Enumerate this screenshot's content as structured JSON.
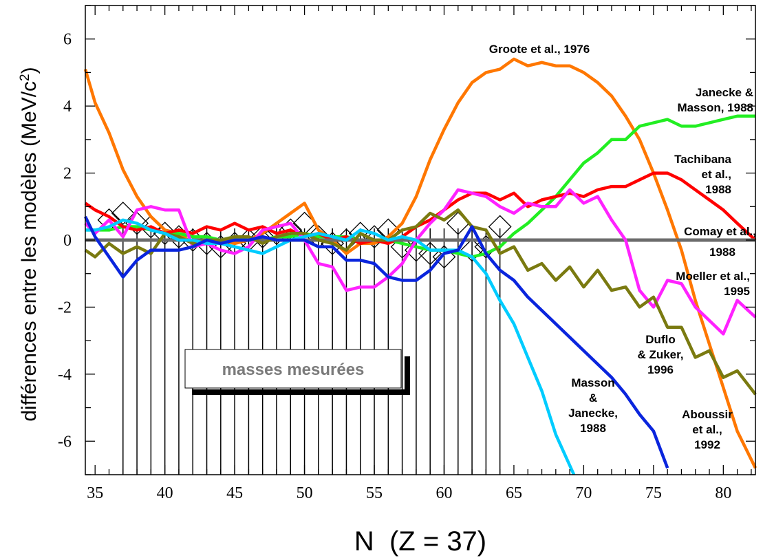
{
  "chart_data": {
    "type": "line",
    "title": "",
    "xlabel": "N  (Z = 37)",
    "ylabel": "différences entre les modèles (MeV/c²)",
    "ylabel_main": "différences entre les modèles (MeV/c",
    "ylabel_sup": "2",
    "ylabel_end": ")",
    "xlim": [
      34.3,
      82.3
    ],
    "ylim": [
      -7,
      7
    ],
    "x_ticks": [
      35,
      40,
      45,
      50,
      55,
      60,
      65,
      70,
      75,
      80
    ],
    "y_ticks": [
      6,
      4,
      2,
      0,
      -2,
      -4,
      -6
    ],
    "grid": false,
    "measured_label": "masses mesurées",
    "measured_N": [
      37,
      38,
      39,
      40,
      41,
      42,
      43,
      44,
      45,
      46,
      47,
      48,
      49,
      50,
      51,
      52,
      53,
      54,
      55,
      56,
      57,
      58,
      59,
      60,
      61,
      62,
      63,
      64
    ],
    "measured_y": [
      -7.0,
      -7.0,
      -7.0,
      -7.0,
      -7.0,
      -7.0,
      -7.0,
      -7.0,
      -7.0,
      -7.0,
      -7.0,
      -7.0,
      -7.0,
      -7.0,
      -7.0,
      -7.0,
      -7.0,
      -7.0,
      -7.0,
      -7.0,
      -7.0,
      -7.0,
      -7.0,
      -7.0,
      -7.0,
      -7.0,
      -7.0,
      -7.0
    ],
    "diamond_N": [
      36,
      37,
      38,
      39,
      40,
      41,
      42,
      43,
      44,
      45,
      46,
      47,
      48,
      49,
      50,
      51,
      52,
      53,
      54,
      55,
      56,
      57,
      58,
      59,
      60,
      61,
      62,
      63,
      64
    ],
    "diamond_y": [
      0.6,
      0.8,
      0.5,
      0.4,
      0.2,
      0.1,
      0.0,
      -0.1,
      -0.2,
      -0.1,
      0.0,
      0.1,
      0.2,
      0.3,
      0.5,
      0.1,
      -0.1,
      0.0,
      0.2,
      0.1,
      0.3,
      -0.2,
      -0.3,
      -0.4,
      -0.5,
      0.5,
      -0.3,
      -0.2,
      0.4
    ],
    "series": [
      {
        "name": "Groote et al., 1976",
        "label_lines": [
          "Groote et al., 1976"
        ],
        "color": "#ff7700",
        "x": [
          34.3,
          35,
          36,
          37,
          38,
          39,
          40,
          41,
          42,
          43,
          44,
          45,
          46,
          47,
          48,
          49,
          50,
          51,
          52,
          53,
          54,
          55,
          56,
          57,
          58,
          59,
          60,
          61,
          62,
          63,
          64,
          65,
          66,
          67,
          68,
          69,
          70,
          71,
          72,
          73,
          74,
          75,
          76,
          77,
          78,
          79,
          80,
          81,
          82.3
        ],
        "y": [
          5.1,
          4.1,
          3.2,
          2.1,
          1.3,
          0.7,
          0.3,
          0.2,
          -0.1,
          0.0,
          0.0,
          -0.1,
          0.0,
          0.2,
          0.5,
          0.8,
          1.1,
          0.3,
          0.0,
          -0.4,
          -0.1,
          -0.1,
          0.1,
          0.5,
          1.3,
          2.4,
          3.3,
          4.1,
          4.7,
          5.0,
          5.1,
          5.4,
          5.2,
          5.3,
          5.2,
          5.2,
          5.0,
          4.7,
          4.3,
          3.7,
          3.0,
          2.0,
          0.9,
          -0.3,
          -1.8,
          -3.1,
          -4.4,
          -5.7,
          -6.8
        ]
      },
      {
        "name": "Janecke & Masson, 1988",
        "label_lines": [
          "Janecke &",
          "Masson, 1988"
        ],
        "color": "#22ee22",
        "x": [
          34.3,
          35,
          36,
          37,
          38,
          39,
          40,
          41,
          42,
          43,
          44,
          45,
          46,
          47,
          48,
          49,
          50,
          51,
          52,
          53,
          54,
          55,
          56,
          57,
          58,
          59,
          60,
          61,
          62,
          63,
          64,
          65,
          66,
          67,
          68,
          69,
          70,
          71,
          72,
          73,
          74,
          75,
          76,
          77,
          78,
          79,
          80,
          81,
          82.3
        ],
        "y": [
          0.3,
          0.3,
          0.3,
          0.4,
          0.4,
          0.3,
          0.2,
          0.2,
          0.1,
          0.1,
          0.0,
          0.1,
          0.0,
          0.0,
          0.1,
          0.1,
          0.2,
          0.1,
          0.1,
          0.1,
          0.0,
          0.0,
          0.0,
          -0.1,
          -0.2,
          -0.3,
          -0.3,
          -0.4,
          -0.5,
          -0.4,
          -0.2,
          0.2,
          0.5,
          0.9,
          1.3,
          1.8,
          2.3,
          2.6,
          3.0,
          3.0,
          3.4,
          3.5,
          3.6,
          3.4,
          3.4,
          3.5,
          3.6,
          3.7,
          3.7
        ]
      },
      {
        "name": "Tachibana et al., 1988",
        "label_lines": [
          "Tachibana",
          "et al.,",
          "1988"
        ],
        "color": "#ff0000",
        "x": [
          34.3,
          35,
          36,
          37,
          38,
          39,
          40,
          41,
          42,
          43,
          44,
          45,
          46,
          47,
          48,
          49,
          50,
          51,
          52,
          53,
          54,
          55,
          56,
          57,
          58,
          59,
          60,
          61,
          62,
          63,
          64,
          65,
          66,
          67,
          68,
          69,
          70,
          71,
          72,
          73,
          74,
          75,
          76,
          77,
          78,
          79,
          80,
          81,
          82.3
        ],
        "y": [
          1.1,
          0.9,
          0.7,
          0.4,
          0.3,
          0.4,
          0.2,
          0.3,
          0.2,
          0.4,
          0.3,
          0.5,
          0.3,
          0.4,
          0.2,
          0.3,
          0.1,
          0.2,
          0.0,
          0.1,
          -0.1,
          0.0,
          -0.1,
          0.1,
          0.4,
          0.6,
          0.9,
          1.2,
          1.4,
          1.4,
          1.2,
          1.4,
          1.0,
          1.2,
          1.3,
          1.4,
          1.3,
          1.5,
          1.6,
          1.6,
          1.8,
          2.0,
          2.0,
          1.8,
          1.5,
          1.2,
          0.9,
          0.5,
          0.0
        ]
      },
      {
        "name": "Comay et al., 1988",
        "label_lines": [
          "Comay et al.,",
          "1988"
        ],
        "color": "#6b6b6b",
        "x": [
          34.3,
          82.3
        ],
        "y": [
          0.0,
          0.0
        ]
      },
      {
        "name": "Moeller et al., 1995",
        "label_lines": [
          "Moeller et al.,",
          "1995"
        ],
        "color": "#ff22ff",
        "x": [
          34.3,
          35,
          36,
          37,
          38,
          39,
          40,
          41,
          42,
          43,
          44,
          45,
          46,
          47,
          48,
          49,
          50,
          51,
          52,
          53,
          54,
          55,
          56,
          57,
          58,
          59,
          60,
          61,
          62,
          63,
          64,
          65,
          66,
          67,
          68,
          69,
          70,
          71,
          72,
          73,
          74,
          75,
          76,
          77,
          78,
          79,
          80,
          81,
          82.3
        ],
        "y": [
          0.5,
          0.2,
          0.6,
          0.1,
          0.9,
          1.0,
          0.9,
          0.9,
          -0.2,
          -0.1,
          -0.3,
          -0.4,
          -0.2,
          0.3,
          0.4,
          0.5,
          0.0,
          -0.7,
          -0.8,
          -1.5,
          -1.4,
          -1.4,
          -1.1,
          -0.7,
          0.0,
          0.5,
          0.9,
          1.5,
          1.4,
          1.3,
          1.0,
          0.8,
          1.1,
          1.0,
          1.0,
          1.5,
          1.1,
          1.3,
          0.6,
          0.0,
          -1.5,
          -2.0,
          -1.2,
          -1.3,
          -2.0,
          -2.4,
          -2.8,
          -1.8,
          -2.3
        ]
      },
      {
        "name": "Duflo & Zuker, 1996",
        "label_lines": [
          "Duflo",
          "& Zuker,",
          "1996"
        ],
        "color": "#7a7a10",
        "x": [
          34.3,
          35,
          36,
          37,
          38,
          39,
          40,
          41,
          42,
          43,
          44,
          45,
          46,
          47,
          48,
          49,
          50,
          51,
          52,
          53,
          54,
          55,
          56,
          57,
          58,
          59,
          60,
          61,
          62,
          63,
          64,
          65,
          66,
          67,
          68,
          69,
          70,
          71,
          72,
          73,
          74,
          75,
          76,
          77,
          78,
          79,
          80,
          81,
          82.3
        ],
        "y": [
          -0.3,
          -0.5,
          -0.1,
          -0.4,
          -0.2,
          -0.4,
          0.2,
          0.1,
          -0.1,
          0.0,
          0.0,
          0.1,
          0.1,
          -0.1,
          0.1,
          0.2,
          0.2,
          0.0,
          -0.1,
          -0.3,
          0.2,
          0.0,
          0.0,
          0.3,
          0.4,
          0.8,
          0.6,
          0.9,
          0.4,
          0.3,
          -0.4,
          -0.2,
          -0.9,
          -0.7,
          -1.2,
          -0.8,
          -1.4,
          -0.9,
          -1.5,
          -1.4,
          -2.0,
          -1.7,
          -2.6,
          -2.6,
          -3.5,
          -3.3,
          -4.1,
          -3.9,
          -4.6
        ]
      },
      {
        "name": "Masson & Janecke, 1988",
        "label_lines": [
          "Masson",
          "&",
          "Janecke,",
          "1988"
        ],
        "color": "#00ccff",
        "x": [
          34.3,
          35,
          36,
          37,
          38,
          39,
          40,
          41,
          42,
          43,
          44,
          45,
          46,
          47,
          48,
          49,
          50,
          51,
          52,
          53,
          54,
          55,
          56,
          57,
          58,
          59,
          60,
          61,
          62,
          63,
          64,
          65,
          66,
          67,
          68,
          69.3
        ],
        "y": [
          0.3,
          0.3,
          0.4,
          0.6,
          0.5,
          0.3,
          0.2,
          0.0,
          0.0,
          -0.1,
          -0.1,
          -0.2,
          -0.3,
          -0.4,
          -0.2,
          0.0,
          0.1,
          0.2,
          0.1,
          0.0,
          0.3,
          0.2,
          0.0,
          0.1,
          0.0,
          -0.3,
          -0.3,
          -0.3,
          -0.5,
          -1.0,
          -1.8,
          -2.5,
          -3.5,
          -4.5,
          -5.8,
          -7.0
        ]
      },
      {
        "name": "Aboussir et al., 1992",
        "label_lines": [
          "Aboussir",
          "et al.,",
          "1992"
        ],
        "color": "#0a25dd",
        "x": [
          34.3,
          35,
          36,
          37,
          38,
          39,
          40,
          41,
          42,
          43,
          44,
          45,
          46,
          47,
          48,
          49,
          50,
          51,
          52,
          53,
          54,
          55,
          56,
          57,
          58,
          59,
          60,
          61,
          62,
          63,
          64,
          65,
          66,
          67,
          68,
          69,
          70,
          71,
          72,
          73,
          74,
          75,
          76
        ],
        "y": [
          0.7,
          0.1,
          -0.5,
          -1.1,
          -0.6,
          -0.3,
          -0.3,
          -0.3,
          -0.2,
          0.0,
          -0.1,
          0.0,
          0.0,
          0.1,
          0.0,
          0.0,
          0.0,
          -0.2,
          -0.2,
          -0.6,
          -0.6,
          -0.7,
          -1.1,
          -1.2,
          -1.2,
          -0.9,
          -0.4,
          -0.3,
          0.4,
          -0.4,
          -0.9,
          -1.2,
          -1.7,
          -2.1,
          -2.5,
          -2.9,
          -3.3,
          -3.7,
          -4.1,
          -4.6,
          -5.2,
          -5.7,
          -6.8
        ]
      }
    ]
  }
}
